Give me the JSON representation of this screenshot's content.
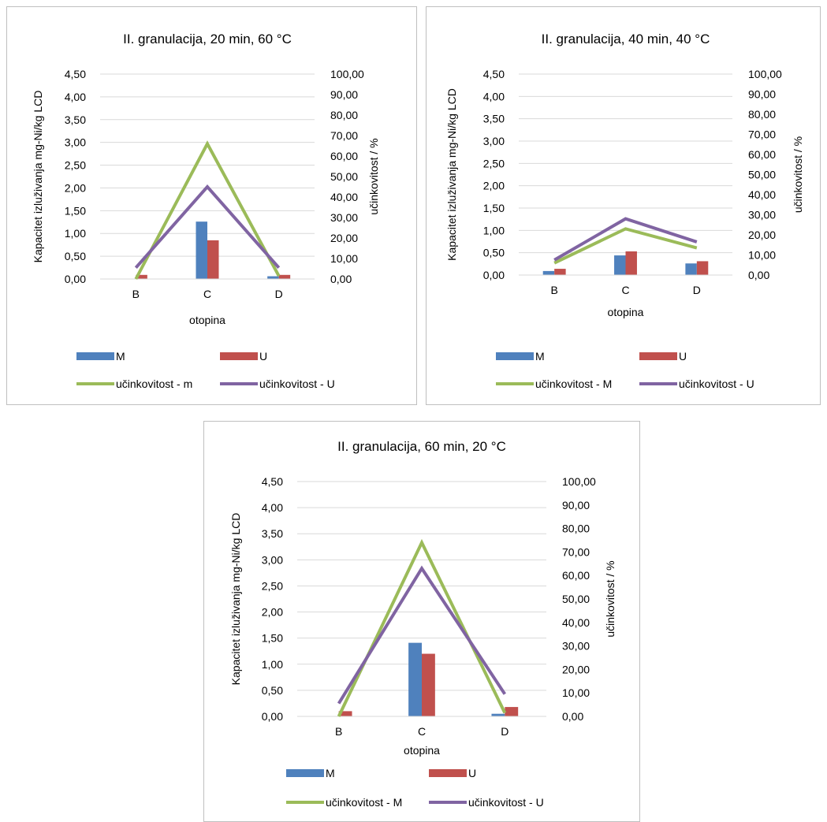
{
  "colors": {
    "M": "#4f81bd",
    "U": "#c0504d",
    "eff_M": "#9bbb59",
    "eff_U": "#8064a2",
    "grid": "#d9d9d9"
  },
  "chart_data": [
    {
      "type": "bar",
      "title": "II. granulacija, 20 min, 60 °C",
      "xlabel": "otopina",
      "ylabel": "Kapacitet izluživanja mg-Ni/kg LCD",
      "y2label": "učinkovitost / %",
      "categories": [
        "B",
        "C",
        "D"
      ],
      "ylim": [
        0,
        4.5
      ],
      "y2lim": [
        0,
        100
      ],
      "yticks": [
        "0,00",
        "0,50",
        "1,00",
        "1,50",
        "2,00",
        "2,50",
        "3,00",
        "3,50",
        "4,00",
        "4,50"
      ],
      "y2ticks": [
        "0,00",
        "10,00",
        "20,00",
        "30,00",
        "40,00",
        "50,00",
        "60,00",
        "70,00",
        "80,00",
        "90,00",
        "100,00"
      ],
      "grid": true,
      "legend_position": "bottom",
      "series": [
        {
          "name": "M",
          "type": "bar",
          "axis": "left",
          "values": [
            0.0,
            1.26,
            0.06
          ]
        },
        {
          "name": "U",
          "type": "bar",
          "axis": "left",
          "values": [
            0.09,
            0.85,
            0.09
          ]
        },
        {
          "name": "učinkovitost - m",
          "type": "line",
          "axis": "right",
          "values": [
            0.0,
            66.0,
            1.5
          ]
        },
        {
          "name": "učinkovitost - U",
          "type": "line",
          "axis": "right",
          "values": [
            5.5,
            45.0,
            5.5
          ]
        }
      ]
    },
    {
      "type": "bar",
      "title": "II. granulacija, 40 min, 40 °C",
      "xlabel": "otopina",
      "ylabel": "Kapacitet izluživanja mg-Ni/kg LCD",
      "y2label": "učinkovitost / %",
      "categories": [
        "B",
        "C",
        "D"
      ],
      "ylim": [
        0,
        4.5
      ],
      "y2lim": [
        0,
        100
      ],
      "yticks": [
        "0,00",
        "0,50",
        "1,00",
        "1,50",
        "2,00",
        "2,50",
        "3,00",
        "3,50",
        "4,00",
        "4,50"
      ],
      "y2ticks": [
        "0,00",
        "10,00",
        "20,00",
        "30,00",
        "40,00",
        "50,00",
        "60,00",
        "70,00",
        "80,00",
        "90,00",
        "100,00"
      ],
      "grid": true,
      "legend_position": "bottom",
      "series": [
        {
          "name": "M",
          "type": "bar",
          "axis": "left",
          "values": [
            0.09,
            0.44,
            0.26
          ]
        },
        {
          "name": "U",
          "type": "bar",
          "axis": "left",
          "values": [
            0.14,
            0.53,
            0.31
          ]
        },
        {
          "name": "učinkovitost - M",
          "type": "line",
          "axis": "right",
          "values": [
            6.0,
            23.0,
            13.5
          ]
        },
        {
          "name": "učinkovitost - U",
          "type": "line",
          "axis": "right",
          "values": [
            7.5,
            28.0,
            16.5
          ]
        }
      ]
    },
    {
      "type": "bar",
      "title": "II. granulacija, 60 min, 20 °C",
      "xlabel": "otopina",
      "ylabel": "Kapacitet izluživanja mg-Ni/kg LCD",
      "y2label": "učinkovitost / %",
      "categories": [
        "B",
        "C",
        "D"
      ],
      "ylim": [
        0,
        4.5
      ],
      "y2lim": [
        0,
        100
      ],
      "yticks": [
        "0,00",
        "0,50",
        "1,00",
        "1,50",
        "2,00",
        "2,50",
        "3,00",
        "3,50",
        "4,00",
        "4,50"
      ],
      "y2ticks": [
        "0,00",
        "10,00",
        "20,00",
        "30,00",
        "40,00",
        "50,00",
        "60,00",
        "70,00",
        "80,00",
        "90,00",
        "100,00"
      ],
      "grid": true,
      "legend_position": "bottom",
      "series": [
        {
          "name": "M",
          "type": "bar",
          "axis": "left",
          "values": [
            0.0,
            1.41,
            0.05
          ]
        },
        {
          "name": "U",
          "type": "bar",
          "axis": "left",
          "values": [
            0.1,
            1.2,
            0.18
          ]
        },
        {
          "name": "učinkovitost - M",
          "type": "line",
          "axis": "right",
          "values": [
            0.0,
            74.0,
            1.5
          ]
        },
        {
          "name": "učinkovitost - U",
          "type": "line",
          "axis": "right",
          "values": [
            5.5,
            63.0,
            9.5
          ]
        }
      ]
    }
  ]
}
